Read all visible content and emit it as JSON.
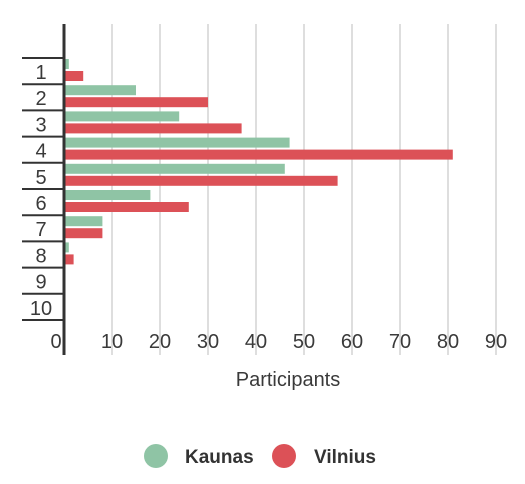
{
  "chart_data": {
    "type": "bar",
    "orientation": "horizontal",
    "categories": [
      "1",
      "2",
      "3",
      "4",
      "5",
      "6",
      "7",
      "8",
      "9",
      "10"
    ],
    "series": [
      {
        "name": "Kaunas",
        "color": "#8fc4a5",
        "values": [
          1,
          15,
          24,
          47,
          46,
          18,
          8,
          1,
          0,
          0
        ]
      },
      {
        "name": "Vilnius",
        "color": "#dc5157",
        "values": [
          4,
          30,
          37,
          81,
          57,
          26,
          8,
          2,
          0,
          0
        ]
      }
    ],
    "xlabel": "Participants",
    "xlim": [
      0,
      90
    ],
    "xticks": [
      "0",
      "10",
      "20",
      "30",
      "40",
      "50",
      "60",
      "70",
      "80",
      "90"
    ],
    "grid": true,
    "legend_position": "bottom"
  }
}
